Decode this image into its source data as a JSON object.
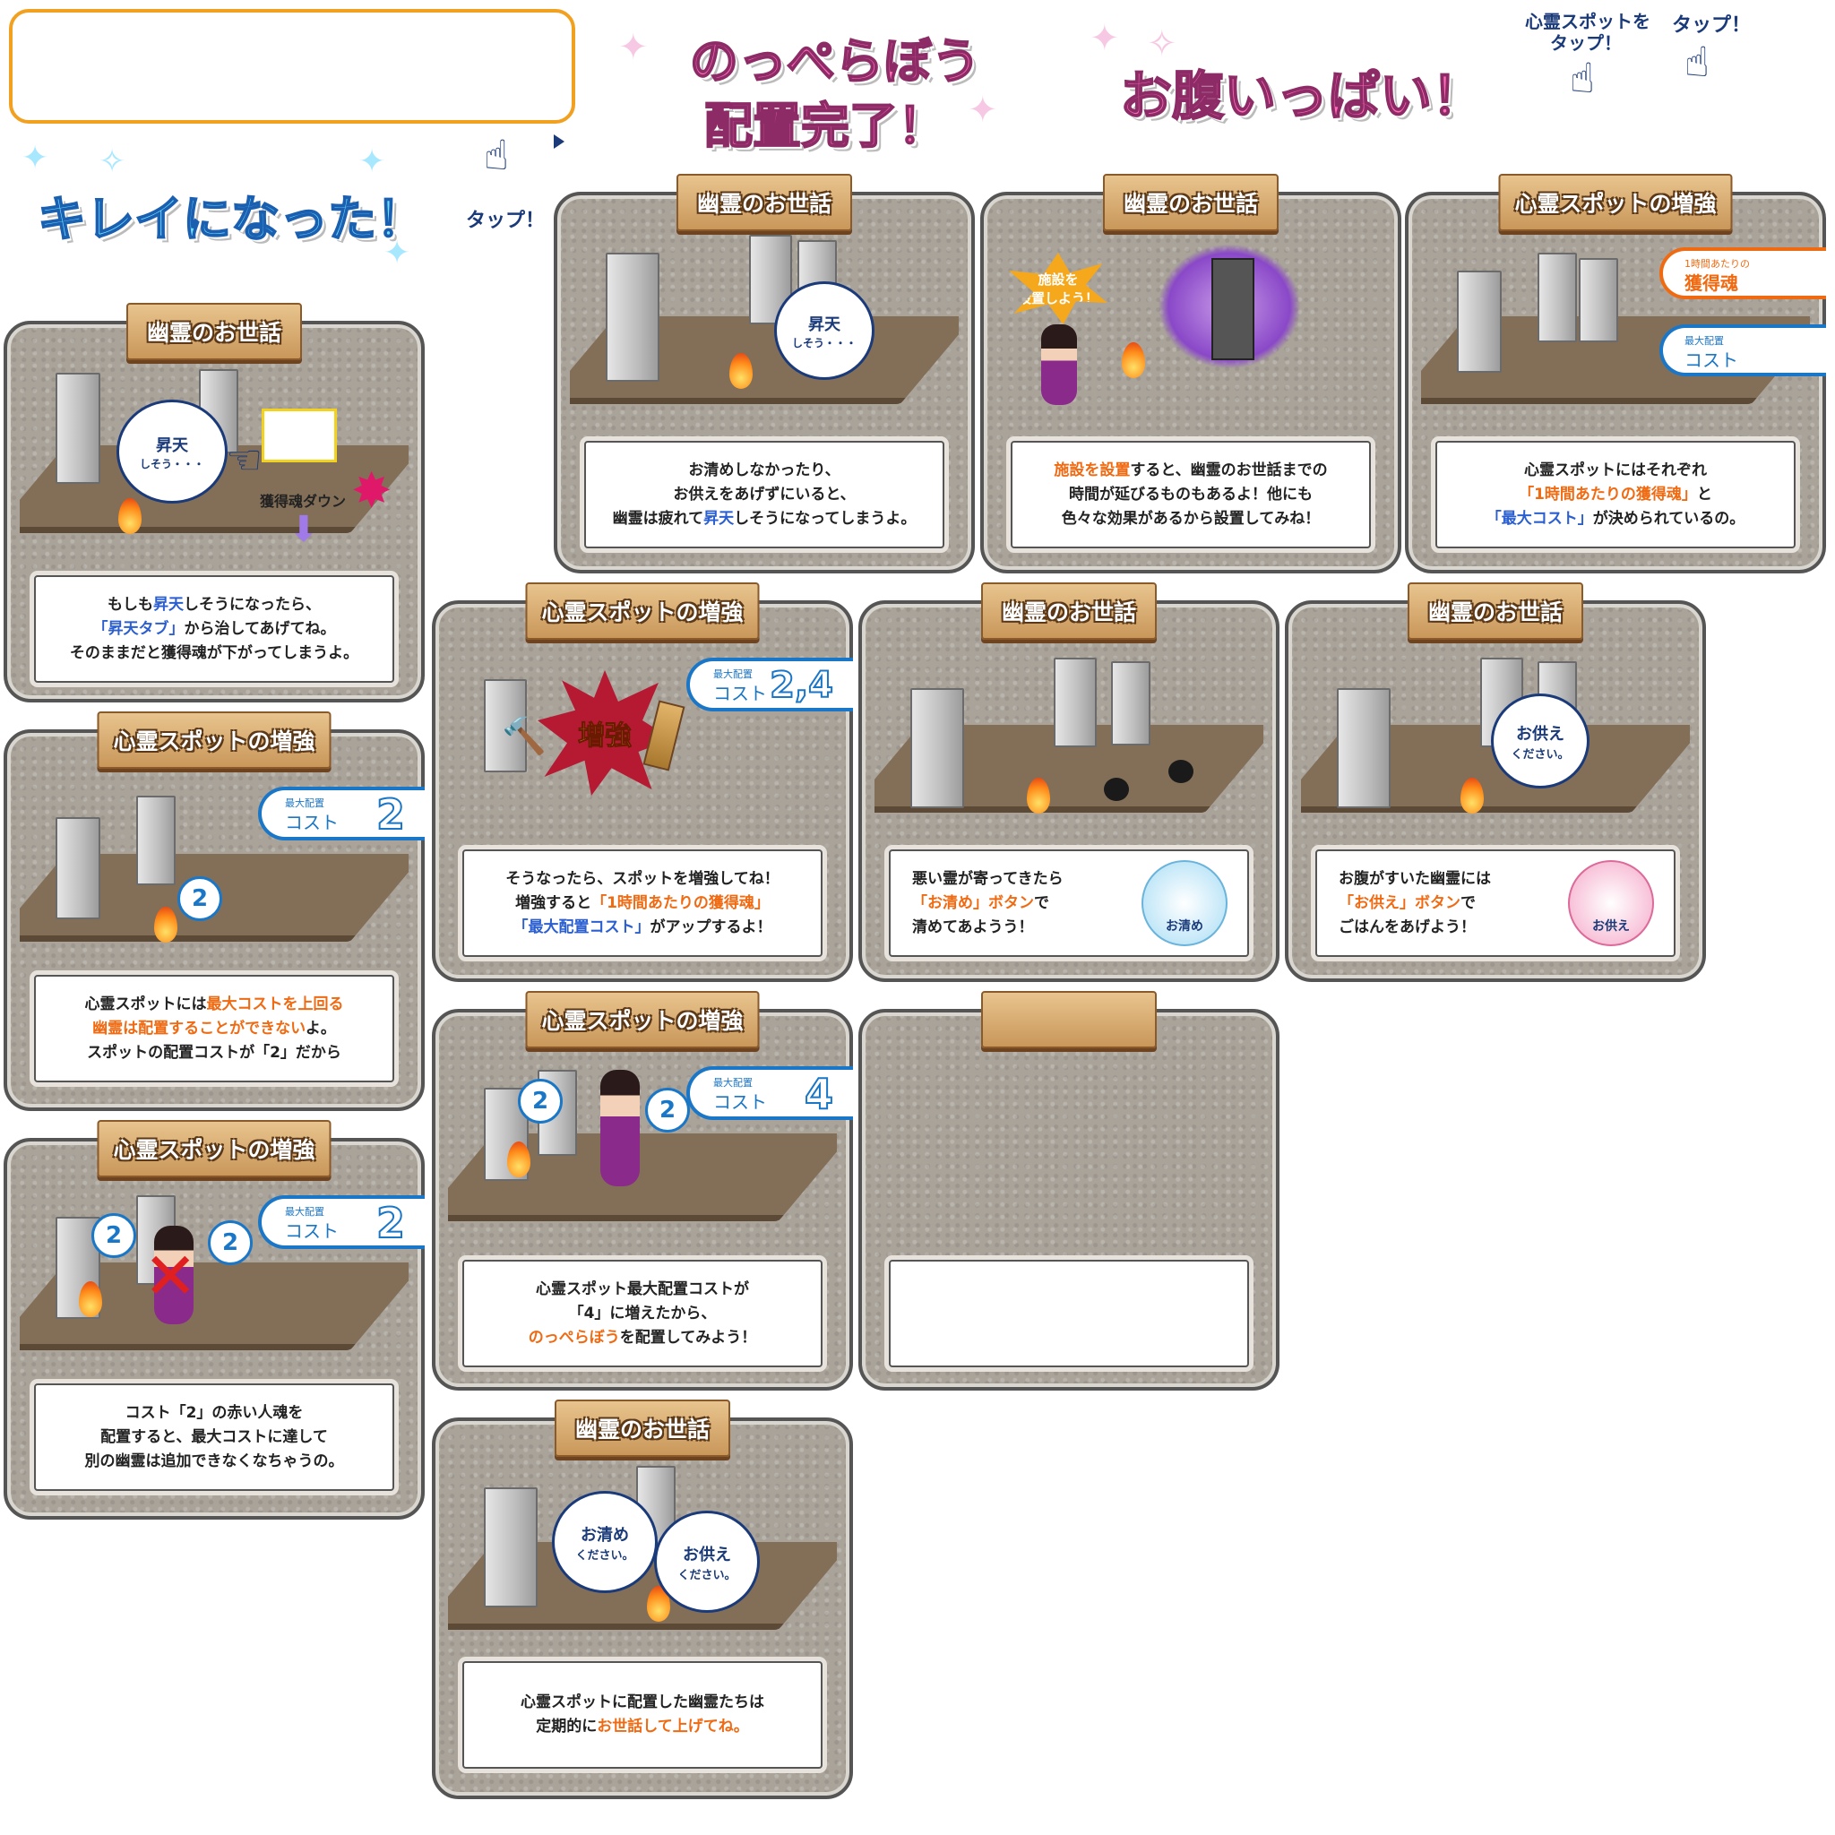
{
  "titles": {
    "clean": "キレイになった！",
    "placed_l1": "のっぺらぼう",
    "placed_l2": "配置完了！",
    "full": "お腹いっぱい！"
  },
  "taps": {
    "tap1": "タップ！",
    "tap2_l1": "心霊スポットを",
    "tap2_l2": "タップ！",
    "tap3": "タップ！"
  },
  "cards": {
    "c1": {
      "plank": "幽霊のお世話",
      "bubble_l1": "昇天",
      "bubble_l2": "しそう・・・",
      "down": "獲得魂ダウン",
      "l1a": "もしも",
      "l1b": "昇天",
      "l1c": "しそうになったら、",
      "l2a": "「昇天タブ」",
      "l2b": "から治してあげてね。",
      "l3": "そのままだと獲得魂が下がってしまうよ。"
    },
    "c2": {
      "plank": "幽霊のお世話",
      "bubble_l1": "昇天",
      "bubble_l2": "しそう・・・",
      "l1": "お清めしなかったり、",
      "l2": "お供えをあげずにいると、",
      "l3a": "幽霊は疲れて",
      "l3b": "昇天",
      "l3c": "しそうになってしまうよ。"
    },
    "c3": {
      "plank": "幽霊のお世話",
      "burst_l1": "施設を",
      "burst_l2": "設置しよう！",
      "l1a": "施設を設置",
      "l1b": "すると、幽霊のお世話までの",
      "l2": "時間が延びるものもあるよ！他にも",
      "l3": "色々な効果があるから設置してみね！"
    },
    "c4": {
      "plank": "心霊スポットの増強",
      "tag1_s": "1時間あたりの",
      "tag1_m": "獲得魂",
      "tag2_s": "最大配置",
      "tag2_m": "コスト",
      "l1": "心霊スポットにはそれぞれ",
      "l2a": "「1時間あたりの獲得魂」",
      "l2b": "と",
      "l3a": "「最大コスト」",
      "l3b": "が決められているの。"
    },
    "c5": {
      "plank": "心霊スポットの増強",
      "tag_s": "最大配置",
      "tag_m": "コスト",
      "tag_n": "2",
      "spot": "2",
      "l1a": "心霊スポットには",
      "l1b": "最大コストを上回る",
      "l2a": "幽霊は配置することができない",
      "l2b": "よ。",
      "l3": "スポットの配置コストが「2」だから"
    },
    "c6": {
      "plank": "心霊スポットの増強",
      "tag_s": "最大配置",
      "tag_m": "コスト",
      "tag_n": "2",
      "spot1": "2",
      "spot2": "2",
      "l1": "コスト「2」の赤い人魂を",
      "l2": "配置すると、最大コストに達して",
      "l3": "別の幽霊は追加できなくなちゃうの。"
    },
    "c7": {
      "plank": "心霊スポットの増強",
      "burst": "増強",
      "tag_s": "最大配置",
      "tag_m": "コスト",
      "tag_n": "2,4",
      "l1": "そうなったら、スポットを増強してね！",
      "l2a": "増強すると",
      "l2b": "「1時間あたりの獲得魂」",
      "l3a": "「最大配置コスト」",
      "l3b": "がアップするよ！"
    },
    "c8": {
      "plank": "心霊スポットの増強",
      "tag_s": "最大配置",
      "tag_m": "コスト",
      "tag_n": "4",
      "spot1": "2",
      "spot2": "2",
      "l1": "心霊スポット最大配置コストが",
      "l2": "「4」に増えたから、",
      "l3a": "のっぺらぼう",
      "l3b": "を配置してみよう！"
    },
    "c9": {
      "plank": "幽霊のお世話",
      "bubble1_l1": "お清め",
      "bubble1_l2": "ください。",
      "bubble2_l1": "お供え",
      "bubble2_l2": "ください。",
      "l1": "心霊スポットに配置した幽霊たちは",
      "l2a": "定期的に",
      "l2b": "お世話して上げてね。"
    },
    "c10": {
      "plank": "幽霊のお世話",
      "btn": "お清め",
      "l1": "悪い霊が寄ってきたら",
      "l2a": "「お清め」ボタン",
      "l2b": "で",
      "l3": "清めてあようう！"
    },
    "c11": {
      "plank": "幽霊のお世話",
      "bubble_l1": "お供え",
      "bubble_l2": "ください。",
      "btn": "お供え",
      "l1": "お腹がすいた幽霊には",
      "l2a": "「お供え」ボタン",
      "l2b": "で",
      "l3": "ごはんをあげよう！"
    },
    "c12": {
      "plank": ""
    }
  }
}
